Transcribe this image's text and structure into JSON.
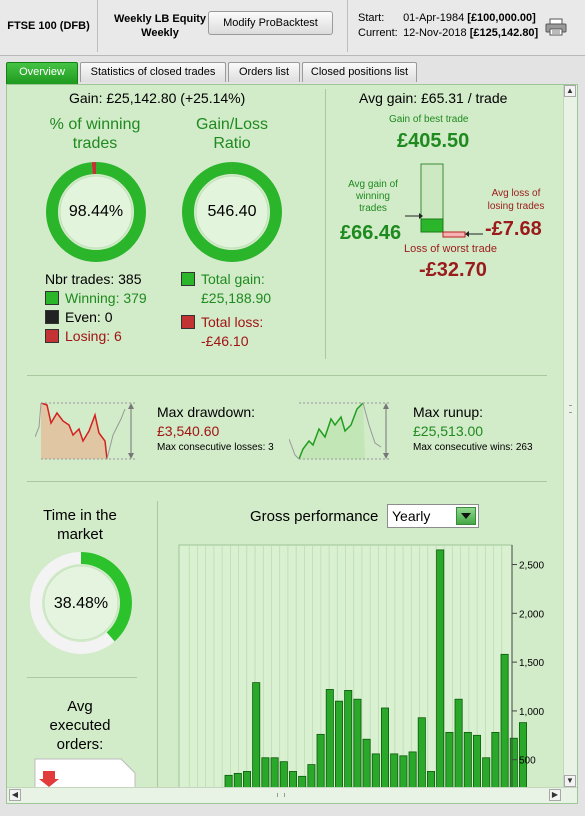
{
  "header": {
    "instrument": "FTSE 100 (DFB)",
    "strategy_line1": "Weekly LB Equity",
    "strategy_line2": "Weekly",
    "modify_button": "Modify ProBacktest",
    "start_label": "Start:",
    "start_date": "01-Apr-1984",
    "start_capital": "[£100,000.00]",
    "current_label": "Current:",
    "current_date": "12-Nov-2018",
    "current_capital": "[£125,142.80]",
    "print_icon": "printer-icon"
  },
  "tabs": [
    {
      "label": "Overview",
      "active": true
    },
    {
      "label": "Statistics of closed trades",
      "active": false
    },
    {
      "label": "Orders list",
      "active": false
    },
    {
      "label": "Closed positions list",
      "active": false
    }
  ],
  "summary": {
    "gain": "Gain: £25,142.80 (+25.14%)",
    "winning_title_1": "% of winning",
    "winning_title_2": "trades",
    "winning_value": "98.44%",
    "winning_fraction": 0.9844,
    "ratio_title_1": "Gain/Loss",
    "ratio_title_2": "Ratio",
    "ratio_value": "546.40",
    "ratio_fraction": 0.9982,
    "nbr_trades": "Nbr trades: 385",
    "winning": "Winning: 379",
    "even": "Even: 0",
    "losing": "Losing: 6",
    "total_gain_label": "Total gain:",
    "total_gain_value": "£25,188.90",
    "total_loss_label": "Total loss:",
    "total_loss_value": "-£46.10"
  },
  "avg_gain": {
    "title": "Avg gain: £65.31 / trade",
    "best_label": "Gain of best trade",
    "best_value": "£405.50",
    "avg_win_label_1": "Avg gain of",
    "avg_win_label_2": "winning",
    "avg_win_label_3": "trades",
    "avg_win_value": "£66.46",
    "avg_loss_label_1": "Avg loss of",
    "avg_loss_label_2": "losing trades",
    "avg_loss_value": "-£7.68",
    "worst_label": "Loss of worst trade",
    "worst_value": "-£32.70"
  },
  "drawdown": {
    "label": "Max drawdown:",
    "value": "£3,540.60",
    "consecutive": "Max consecutive losses: 3"
  },
  "runup": {
    "label": "Max runup:",
    "value": "£25,513.00",
    "consecutive": "Max consecutive wins: 263"
  },
  "market": {
    "title_1": "Time in the",
    "title_2": "market",
    "value": "38.48%",
    "fraction": 0.3848
  },
  "orders": {
    "title_1": "Avg",
    "title_2": "executed",
    "title_3": "orders:"
  },
  "performance": {
    "title": "Gross performance",
    "period": "Yearly"
  },
  "chart_data": {
    "type": "bar",
    "title": "Gross performance",
    "ylim": [
      200,
      2700
    ],
    "yticks": [
      "2,500",
      "2,000",
      "1,500",
      "1,000",
      "500"
    ],
    "ytick_values": [
      2500,
      2000,
      1500,
      1000,
      500
    ],
    "values": [
      340,
      360,
      380,
      1290,
      520,
      520,
      480,
      380,
      330,
      450,
      760,
      1220,
      1100,
      1210,
      1120,
      710,
      560,
      1030,
      560,
      540,
      580,
      930,
      380,
      2650,
      780,
      1120,
      780,
      750,
      520,
      780,
      1580,
      720,
      880
    ],
    "colors": {
      "bar": "#2aa82a",
      "bar_edge": "#0b5a0b",
      "plot_bg": "#d9f0d1",
      "grid": "#b9d9b0"
    }
  },
  "colors": {
    "accent_green": "#1f9d1f",
    "loss_red": "#c0392b",
    "panel_bg": "#d2ebc9"
  }
}
